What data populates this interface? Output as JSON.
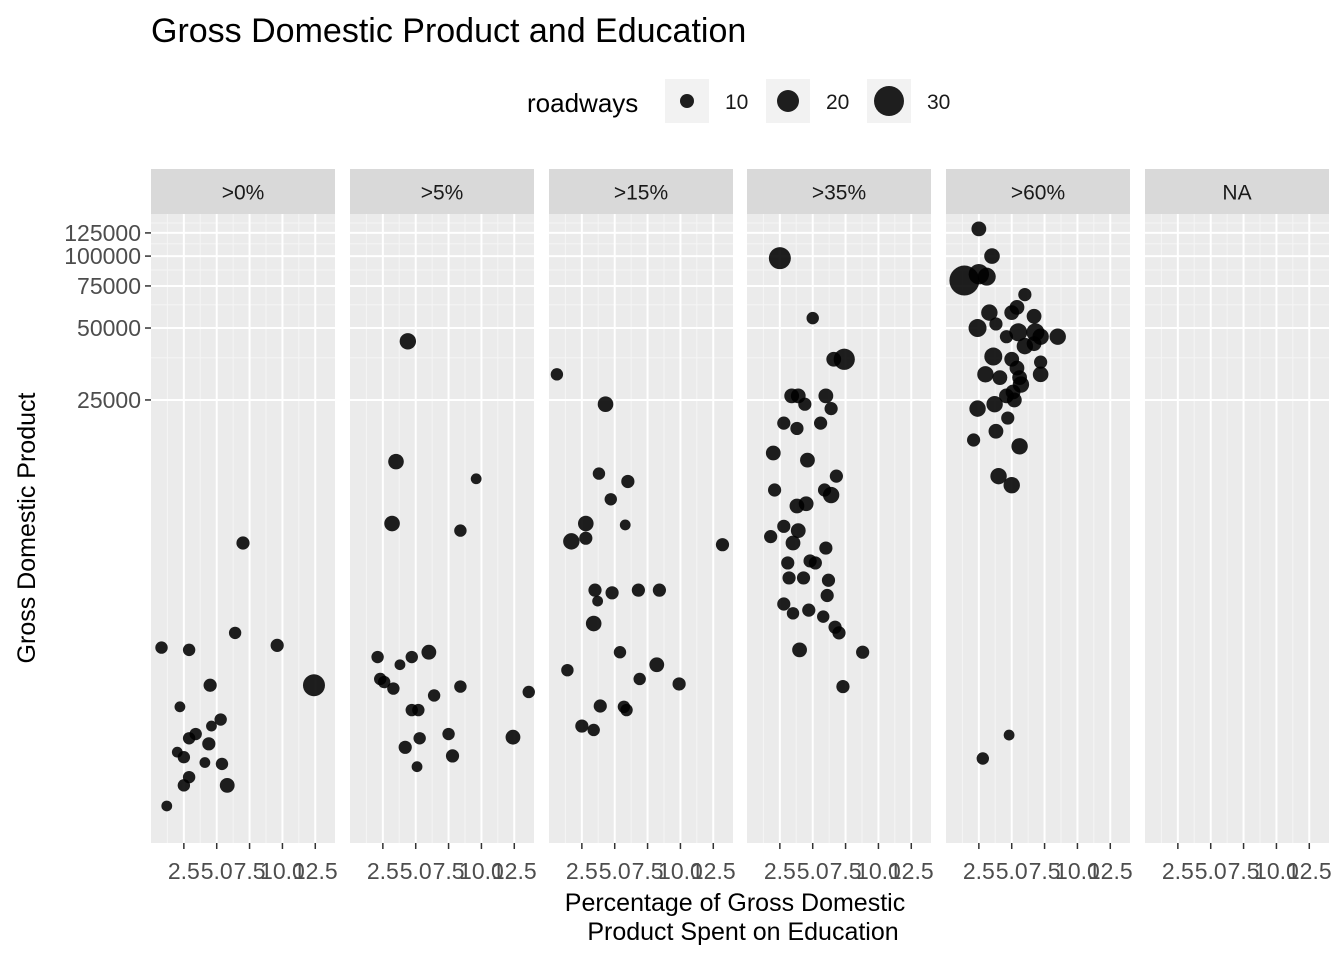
{
  "chart_data": {
    "type": "scatter",
    "title": "Gross Domestic Product and Education",
    "xlabel_lines": [
      "Percentage of Gross Domestic",
      "Product Spent on Education"
    ],
    "ylabel": "Gross Domestic Product",
    "x_ticks": [
      2.5,
      5.0,
      7.5,
      10.0,
      12.5
    ],
    "x_tick_labels": [
      "2.5",
      "5.0",
      "7.5",
      "10.0",
      "12.5"
    ],
    "xlim": [
      0,
      14
    ],
    "y_scale": "log",
    "y_ticks": [
      25000,
      50000,
      75000,
      100000,
      125000
    ],
    "y_tick_labels": [
      "25000",
      "50000",
      "75000",
      "100000",
      "125000"
    ],
    "ylim": [
      350,
      150000
    ],
    "grid": true,
    "legend": {
      "title": "roadways",
      "position": "top",
      "sizes": [
        10,
        20,
        30
      ],
      "labels": [
        "10",
        "20",
        "30"
      ]
    },
    "point_color": "#000000",
    "panel_color": "#ebebeb",
    "strip_color": "#d9d9d9",
    "facets": [
      {
        "label": ">0%",
        "points": [
          {
            "x": 0.8,
            "y": 2300,
            "size": 8
          },
          {
            "x": 2.9,
            "y": 2250,
            "size": 8
          },
          {
            "x": 7.0,
            "y": 6300,
            "size": 9
          },
          {
            "x": 6.4,
            "y": 2650,
            "size": 8
          },
          {
            "x": 9.6,
            "y": 2350,
            "size": 9
          },
          {
            "x": 12.4,
            "y": 1600,
            "size": 20
          },
          {
            "x": 4.5,
            "y": 1600,
            "size": 9
          },
          {
            "x": 2.2,
            "y": 1300,
            "size": 6
          },
          {
            "x": 5.3,
            "y": 1150,
            "size": 8
          },
          {
            "x": 4.6,
            "y": 1080,
            "size": 6
          },
          {
            "x": 3.4,
            "y": 1000,
            "size": 8
          },
          {
            "x": 2.9,
            "y": 960,
            "size": 8
          },
          {
            "x": 4.4,
            "y": 910,
            "size": 9
          },
          {
            "x": 2.0,
            "y": 840,
            "size": 6
          },
          {
            "x": 2.5,
            "y": 800,
            "size": 8
          },
          {
            "x": 4.1,
            "y": 760,
            "size": 6
          },
          {
            "x": 5.4,
            "y": 750,
            "size": 8
          },
          {
            "x": 2.9,
            "y": 660,
            "size": 8
          },
          {
            "x": 2.5,
            "y": 610,
            "size": 8
          },
          {
            "x": 5.8,
            "y": 610,
            "size": 11
          },
          {
            "x": 1.2,
            "y": 500,
            "size": 6
          }
        ]
      },
      {
        "label": ">5%",
        "points": [
          {
            "x": 4.4,
            "y": 44000,
            "size": 13
          },
          {
            "x": 3.5,
            "y": 13800,
            "size": 12
          },
          {
            "x": 9.6,
            "y": 11700,
            "size": 6
          },
          {
            "x": 3.2,
            "y": 7600,
            "size": 12
          },
          {
            "x": 8.4,
            "y": 7100,
            "size": 8
          },
          {
            "x": 2.1,
            "y": 2100,
            "size": 8
          },
          {
            "x": 6.0,
            "y": 2200,
            "size": 11
          },
          {
            "x": 4.7,
            "y": 2100,
            "size": 8
          },
          {
            "x": 3.8,
            "y": 1950,
            "size": 6
          },
          {
            "x": 2.3,
            "y": 1700,
            "size": 8
          },
          {
            "x": 2.6,
            "y": 1650,
            "size": 8
          },
          {
            "x": 3.3,
            "y": 1550,
            "size": 8
          },
          {
            "x": 8.4,
            "y": 1580,
            "size": 8
          },
          {
            "x": 6.4,
            "y": 1450,
            "size": 8
          },
          {
            "x": 13.6,
            "y": 1500,
            "size": 8
          },
          {
            "x": 4.7,
            "y": 1260,
            "size": 8
          },
          {
            "x": 5.2,
            "y": 1260,
            "size": 8
          },
          {
            "x": 7.5,
            "y": 1000,
            "size": 8
          },
          {
            "x": 5.3,
            "y": 960,
            "size": 8
          },
          {
            "x": 12.4,
            "y": 970,
            "size": 11
          },
          {
            "x": 4.2,
            "y": 880,
            "size": 9
          },
          {
            "x": 7.8,
            "y": 810,
            "size": 9
          },
          {
            "x": 5.1,
            "y": 730,
            "size": 6
          }
        ]
      },
      {
        "label": ">15%",
        "points": [
          {
            "x": 0.6,
            "y": 32000,
            "size": 8
          },
          {
            "x": 4.3,
            "y": 24000,
            "size": 12
          },
          {
            "x": 3.8,
            "y": 12300,
            "size": 8
          },
          {
            "x": 4.7,
            "y": 9600,
            "size": 8
          },
          {
            "x": 6.0,
            "y": 11400,
            "size": 9
          },
          {
            "x": 1.7,
            "y": 6400,
            "size": 13
          },
          {
            "x": 2.8,
            "y": 7600,
            "size": 12
          },
          {
            "x": 2.8,
            "y": 6600,
            "size": 9
          },
          {
            "x": 5.8,
            "y": 7500,
            "size": 6
          },
          {
            "x": 13.2,
            "y": 6200,
            "size": 9
          },
          {
            "x": 3.5,
            "y": 4000,
            "size": 9
          },
          {
            "x": 4.8,
            "y": 3900,
            "size": 9
          },
          {
            "x": 6.8,
            "y": 4000,
            "size": 9
          },
          {
            "x": 8.4,
            "y": 4000,
            "size": 9
          },
          {
            "x": 3.7,
            "y": 3600,
            "size": 6
          },
          {
            "x": 3.4,
            "y": 2900,
            "size": 12
          },
          {
            "x": 5.4,
            "y": 2200,
            "size": 8
          },
          {
            "x": 8.2,
            "y": 1950,
            "size": 11
          },
          {
            "x": 1.4,
            "y": 1850,
            "size": 8
          },
          {
            "x": 6.9,
            "y": 1700,
            "size": 8
          },
          {
            "x": 9.9,
            "y": 1620,
            "size": 9
          },
          {
            "x": 3.9,
            "y": 1310,
            "size": 9
          },
          {
            "x": 5.7,
            "y": 1300,
            "size": 8
          },
          {
            "x": 5.9,
            "y": 1260,
            "size": 8
          },
          {
            "x": 2.5,
            "y": 1080,
            "size": 9
          },
          {
            "x": 3.4,
            "y": 1040,
            "size": 8
          }
        ]
      },
      {
        "label": ">35%",
        "points": [
          {
            "x": 2.5,
            "y": 98000,
            "size": 20
          },
          {
            "x": 5.0,
            "y": 55000,
            "size": 8
          },
          {
            "x": 7.4,
            "y": 37000,
            "size": 19
          },
          {
            "x": 6.6,
            "y": 37000,
            "size": 11
          },
          {
            "x": 3.4,
            "y": 26000,
            "size": 11
          },
          {
            "x": 3.9,
            "y": 26000,
            "size": 11
          },
          {
            "x": 6.0,
            "y": 26000,
            "size": 11
          },
          {
            "x": 4.4,
            "y": 24000,
            "size": 9
          },
          {
            "x": 6.4,
            "y": 23000,
            "size": 9
          },
          {
            "x": 2.8,
            "y": 20000,
            "size": 9
          },
          {
            "x": 3.8,
            "y": 19000,
            "size": 9
          },
          {
            "x": 5.6,
            "y": 20000,
            "size": 9
          },
          {
            "x": 2.0,
            "y": 15000,
            "size": 11
          },
          {
            "x": 4.6,
            "y": 14000,
            "size": 11
          },
          {
            "x": 6.8,
            "y": 12000,
            "size": 9
          },
          {
            "x": 2.1,
            "y": 10500,
            "size": 9
          },
          {
            "x": 5.9,
            "y": 10500,
            "size": 9
          },
          {
            "x": 6.4,
            "y": 10000,
            "size": 13
          },
          {
            "x": 3.8,
            "y": 9000,
            "size": 11
          },
          {
            "x": 4.5,
            "y": 9200,
            "size": 11
          },
          {
            "x": 2.8,
            "y": 7400,
            "size": 9
          },
          {
            "x": 3.9,
            "y": 7100,
            "size": 11
          },
          {
            "x": 1.8,
            "y": 6700,
            "size": 9
          },
          {
            "x": 3.5,
            "y": 6300,
            "size": 11
          },
          {
            "x": 6.0,
            "y": 6000,
            "size": 9
          },
          {
            "x": 3.1,
            "y": 5200,
            "size": 9
          },
          {
            "x": 4.8,
            "y": 5300,
            "size": 9
          },
          {
            "x": 5.2,
            "y": 5200,
            "size": 9
          },
          {
            "x": 3.2,
            "y": 4500,
            "size": 9
          },
          {
            "x": 4.3,
            "y": 4500,
            "size": 9
          },
          {
            "x": 6.2,
            "y": 4400,
            "size": 9
          },
          {
            "x": 2.8,
            "y": 3500,
            "size": 9
          },
          {
            "x": 3.5,
            "y": 3200,
            "size": 8
          },
          {
            "x": 4.7,
            "y": 3300,
            "size": 9
          },
          {
            "x": 5.8,
            "y": 3100,
            "size": 8
          },
          {
            "x": 6.7,
            "y": 2800,
            "size": 9
          },
          {
            "x": 7.0,
            "y": 2650,
            "size": 9
          },
          {
            "x": 6.1,
            "y": 3800,
            "size": 9
          },
          {
            "x": 4.0,
            "y": 2250,
            "size": 11
          },
          {
            "x": 8.8,
            "y": 2200,
            "size": 9
          },
          {
            "x": 7.3,
            "y": 1580,
            "size": 9
          }
        ]
      },
      {
        "label": ">60%",
        "points": [
          {
            "x": 2.5,
            "y": 130000,
            "size": 11
          },
          {
            "x": 3.5,
            "y": 100000,
            "size": 12
          },
          {
            "x": 1.4,
            "y": 79000,
            "size": 30
          },
          {
            "x": 2.5,
            "y": 84000,
            "size": 18
          },
          {
            "x": 3.1,
            "y": 82000,
            "size": 15
          },
          {
            "x": 6.0,
            "y": 69000,
            "size": 9
          },
          {
            "x": 5.4,
            "y": 61000,
            "size": 11
          },
          {
            "x": 5.0,
            "y": 58000,
            "size": 11
          },
          {
            "x": 3.3,
            "y": 58000,
            "size": 13
          },
          {
            "x": 6.7,
            "y": 56000,
            "size": 11
          },
          {
            "x": 3.8,
            "y": 52000,
            "size": 9
          },
          {
            "x": 2.4,
            "y": 50000,
            "size": 15
          },
          {
            "x": 5.5,
            "y": 48000,
            "size": 15
          },
          {
            "x": 6.8,
            "y": 48000,
            "size": 15
          },
          {
            "x": 7.2,
            "y": 46000,
            "size": 13
          },
          {
            "x": 8.5,
            "y": 46000,
            "size": 13
          },
          {
            "x": 4.6,
            "y": 46000,
            "size": 9
          },
          {
            "x": 6.0,
            "y": 42000,
            "size": 13
          },
          {
            "x": 6.7,
            "y": 43000,
            "size": 11
          },
          {
            "x": 3.6,
            "y": 38000,
            "size": 15
          },
          {
            "x": 5.0,
            "y": 37000,
            "size": 11
          },
          {
            "x": 7.2,
            "y": 36000,
            "size": 9
          },
          {
            "x": 5.4,
            "y": 34000,
            "size": 11
          },
          {
            "x": 3.0,
            "y": 32000,
            "size": 13
          },
          {
            "x": 4.1,
            "y": 31000,
            "size": 11
          },
          {
            "x": 5.6,
            "y": 31000,
            "size": 11
          },
          {
            "x": 7.2,
            "y": 32000,
            "size": 12
          },
          {
            "x": 5.7,
            "y": 29000,
            "size": 13
          },
          {
            "x": 5.1,
            "y": 27000,
            "size": 11
          },
          {
            "x": 4.6,
            "y": 26000,
            "size": 11
          },
          {
            "x": 5.2,
            "y": 25000,
            "size": 11
          },
          {
            "x": 2.4,
            "y": 23000,
            "size": 13
          },
          {
            "x": 3.7,
            "y": 24000,
            "size": 13
          },
          {
            "x": 4.7,
            "y": 21000,
            "size": 9
          },
          {
            "x": 3.8,
            "y": 18500,
            "size": 11
          },
          {
            "x": 2.1,
            "y": 17000,
            "size": 9
          },
          {
            "x": 5.6,
            "y": 16000,
            "size": 13
          },
          {
            "x": 4.0,
            "y": 12000,
            "size": 13
          },
          {
            "x": 5.0,
            "y": 11000,
            "size": 13
          },
          {
            "x": 4.8,
            "y": 990,
            "size": 6
          },
          {
            "x": 2.8,
            "y": 790,
            "size": 8
          }
        ]
      },
      {
        "label": "NA",
        "points": []
      }
    ]
  }
}
